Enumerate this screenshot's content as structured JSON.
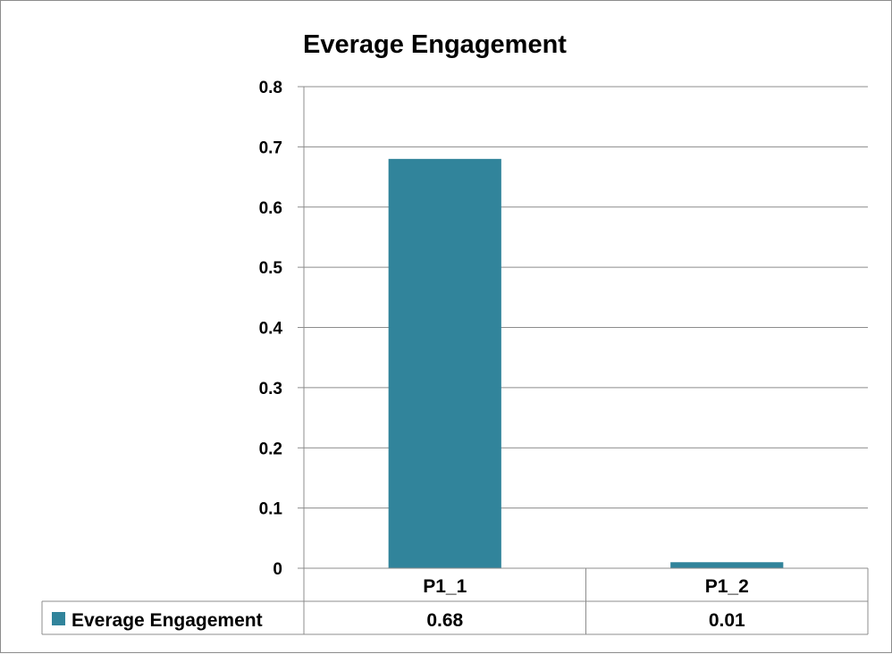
{
  "chart_data": {
    "type": "bar",
    "title": "Everage Engagement",
    "categories": [
      "P1_1",
      "P1_2"
    ],
    "series": [
      {
        "name": "Everage Engagement",
        "values": [
          0.68,
          0.01
        ],
        "color": "#31849b"
      }
    ],
    "ylim": [
      0,
      0.8
    ],
    "yticks": [
      "0",
      "0.1",
      "0.2",
      "0.3",
      "0.4",
      "0.5",
      "0.6",
      "0.7",
      "0.8"
    ],
    "data_table": {
      "values": [
        "0.68",
        "0.01"
      ]
    },
    "grid": true,
    "legend": "data-table-left"
  }
}
